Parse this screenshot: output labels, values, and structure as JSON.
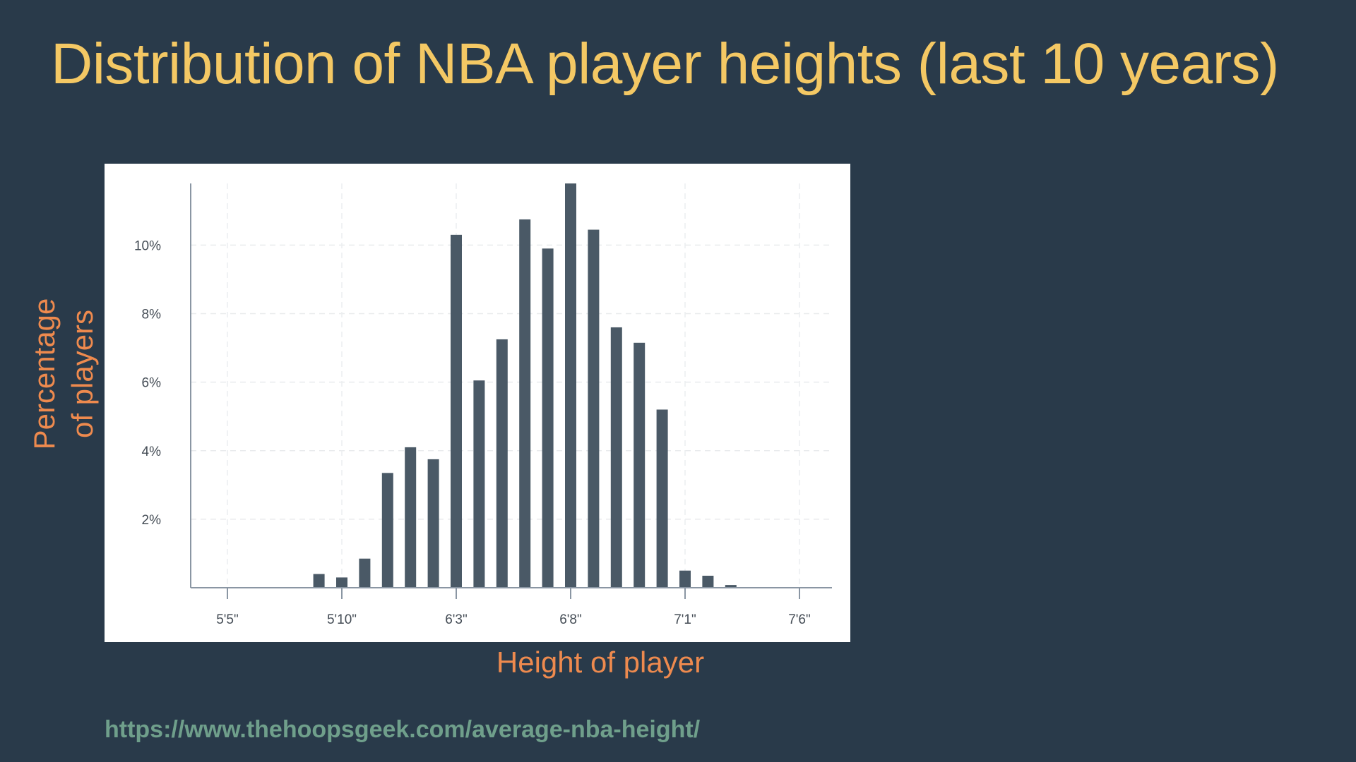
{
  "slide": {
    "title": "Distribution of NBA player heights (last 10 years)",
    "y_title": "Percentage\nof players",
    "x_title": "Height of player",
    "source_url": "https://www.thehoopsgeek.com/average-nba-height/"
  },
  "colors": {
    "background": "#293a4a",
    "title": "#f4c864",
    "axis_titles": "#ee8a4e",
    "url": "#6f9f8b",
    "bar": "#4a5966",
    "tick_text": "#444c55"
  },
  "chart_data": {
    "type": "bar",
    "title": "Distribution of NBA player heights (last 10 years)",
    "xlabel": "Height of player",
    "ylabel": "Percentage of players",
    "x_unit": "inches",
    "xlim": [
      63,
      90
    ],
    "ylim": [
      0,
      11.8
    ],
    "grid": true,
    "x_ticks": [
      {
        "value": 65,
        "label": "5'5\""
      },
      {
        "value": 70,
        "label": "5'10\""
      },
      {
        "value": 75,
        "label": "6'3\""
      },
      {
        "value": 80,
        "label": "6'8\""
      },
      {
        "value": 85,
        "label": "7'1\""
      },
      {
        "value": 90,
        "label": "7'6\""
      }
    ],
    "y_ticks": [
      {
        "value": 2,
        "label": "2%"
      },
      {
        "value": 4,
        "label": "4%"
      },
      {
        "value": 6,
        "label": "6%"
      },
      {
        "value": 8,
        "label": "8%"
      },
      {
        "value": 10,
        "label": "10%"
      }
    ],
    "x": [
      65,
      69,
      70,
      71,
      72,
      73,
      74,
      75,
      76,
      77,
      78,
      79,
      80,
      81,
      82,
      83,
      84,
      85,
      86,
      87,
      88
    ],
    "values": [
      0.02,
      0.4,
      0.3,
      0.85,
      3.35,
      4.1,
      3.75,
      10.3,
      6.05,
      7.25,
      10.75,
      9.9,
      11.8,
      10.45,
      7.6,
      7.15,
      5.2,
      0.5,
      0.35,
      0.08,
      0.02
    ]
  }
}
